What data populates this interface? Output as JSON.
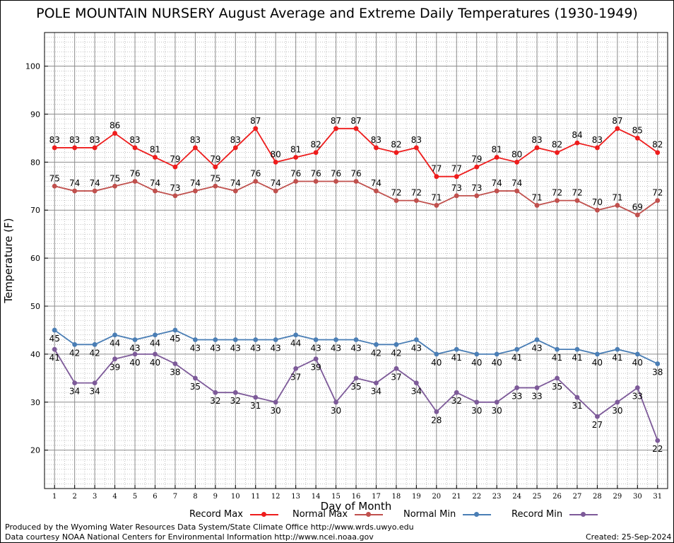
{
  "chart_data": {
    "type": "line",
    "title": "POLE MOUNTAIN NURSERY August Average and Extreme Daily Temperatures (1930-1949)",
    "xlabel": "Day of Month",
    "ylabel": "Temperature (F)",
    "xlim": [
      0.5,
      31.5
    ],
    "ylim": [
      12,
      107
    ],
    "yticks": [
      20,
      30,
      40,
      50,
      60,
      70,
      80,
      90,
      100
    ],
    "x": [
      1,
      2,
      3,
      4,
      5,
      6,
      7,
      8,
      9,
      10,
      11,
      12,
      13,
      14,
      15,
      16,
      17,
      18,
      19,
      20,
      21,
      22,
      23,
      24,
      25,
      26,
      27,
      28,
      29,
      30,
      31
    ],
    "grid": true,
    "legend_position": "bottom",
    "series": [
      {
        "name": "Record Max",
        "color": "#ee1c1c",
        "label_pos": "above",
        "values": [
          83,
          83,
          83,
          86,
          83,
          81,
          79,
          83,
          79,
          83,
          87,
          80,
          81,
          82,
          87,
          87,
          83,
          82,
          83,
          77,
          77,
          79,
          81,
          80,
          83,
          82,
          84,
          83,
          87,
          85,
          82
        ]
      },
      {
        "name": "Normal Max",
        "color": "#c0504d",
        "label_pos": "above",
        "values": [
          75,
          74,
          74,
          75,
          76,
          74,
          73,
          74,
          75,
          74,
          76,
          74,
          76,
          76,
          76,
          76,
          74,
          72,
          72,
          71,
          73,
          73,
          74,
          74,
          71,
          72,
          72,
          70,
          71,
          69,
          72
        ]
      },
      {
        "name": "Normal Min",
        "color": "#4a7eb5",
        "label_pos": "below",
        "values": [
          45,
          42,
          42,
          44,
          43,
          44,
          45,
          43,
          43,
          43,
          43,
          43,
          44,
          43,
          43,
          43,
          42,
          42,
          43,
          40,
          41,
          40,
          40,
          41,
          43,
          41,
          41,
          40,
          41,
          40,
          38
        ]
      },
      {
        "name": "Record Min",
        "color": "#7d5a99",
        "label_pos": "below",
        "values": [
          41,
          34,
          34,
          39,
          40,
          40,
          38,
          35,
          32,
          32,
          31,
          30,
          37,
          39,
          30,
          35,
          34,
          37,
          34,
          28,
          32,
          30,
          30,
          33,
          33,
          35,
          31,
          27,
          30,
          33,
          22
        ]
      }
    ]
  },
  "footer": {
    "produced_by": "Produced by the Wyoming Water Resources Data System/State Climate Office http://www.wrds.uwyo.edu",
    "data_courtesy": "Data courtesy NOAA National Centers for Environmental Information http://www.ncei.noaa.gov",
    "created": "Created:  25-Sep-2024"
  }
}
